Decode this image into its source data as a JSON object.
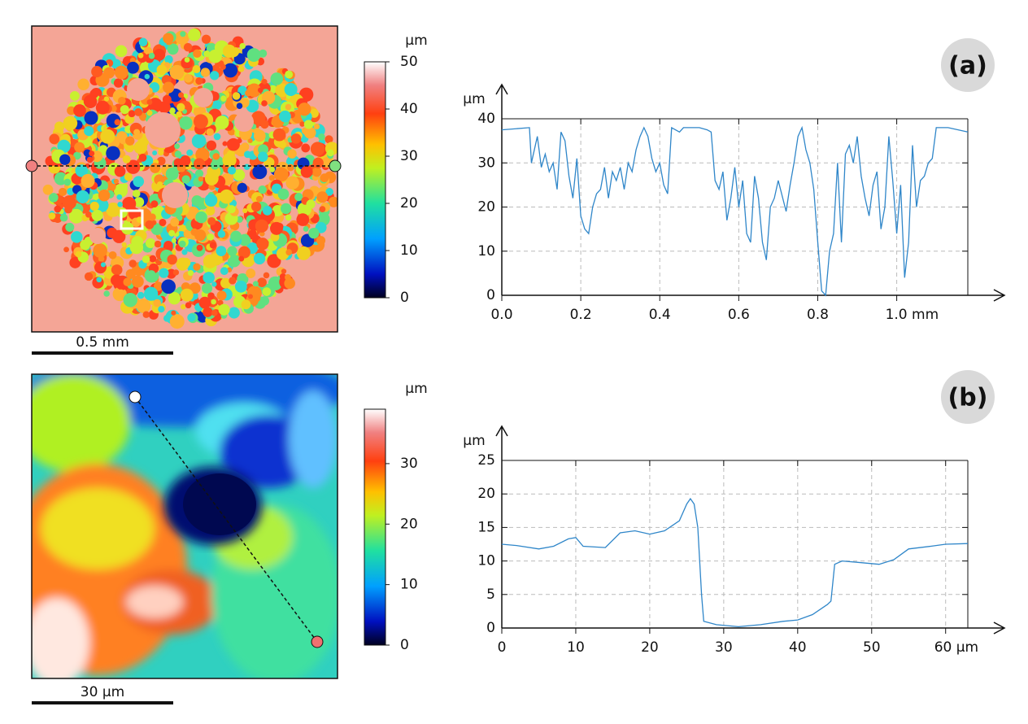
{
  "chart_data": [
    {
      "type": "line",
      "panel_label": "(a)",
      "y_unit": "µm",
      "color": "#2f86c9",
      "grid": true,
      "x": [
        0,
        0.07,
        0.075,
        0.09,
        0.1,
        0.11,
        0.12,
        0.13,
        0.14,
        0.15,
        0.16,
        0.17,
        0.18,
        0.19,
        0.2,
        0.21,
        0.22,
        0.23,
        0.24,
        0.25,
        0.26,
        0.27,
        0.28,
        0.29,
        0.3,
        0.31,
        0.32,
        0.33,
        0.34,
        0.35,
        0.36,
        0.37,
        0.38,
        0.39,
        0.4,
        0.41,
        0.42,
        0.43,
        0.45,
        0.46,
        0.5,
        0.52,
        0.53,
        0.54,
        0.55,
        0.56,
        0.57,
        0.58,
        0.59,
        0.6,
        0.61,
        0.62,
        0.63,
        0.64,
        0.65,
        0.66,
        0.67,
        0.68,
        0.69,
        0.7,
        0.72,
        0.73,
        0.74,
        0.75,
        0.76,
        0.77,
        0.78,
        0.79,
        0.8,
        0.81,
        0.82,
        0.83,
        0.84,
        0.85,
        0.86,
        0.87,
        0.88,
        0.89,
        0.9,
        0.91,
        0.92,
        0.93,
        0.94,
        0.95,
        0.96,
        0.97,
        0.98,
        0.99,
        1.0,
        1.01,
        1.02,
        1.03,
        1.04,
        1.05,
        1.06,
        1.07,
        1.08,
        1.09,
        1.1,
        1.13,
        1.18
      ],
      "values": [
        37.5,
        38,
        30,
        36,
        29,
        32,
        28,
        30,
        24,
        37,
        35,
        27,
        22,
        31,
        18,
        15,
        14,
        20,
        23,
        24,
        29,
        22,
        28,
        26,
        29,
        24,
        30,
        28,
        33,
        36,
        38,
        36,
        31,
        28,
        30,
        25,
        23,
        38,
        37,
        38,
        38,
        37.5,
        37,
        26,
        24,
        28,
        17,
        22,
        29,
        20,
        26,
        14,
        12,
        27,
        22,
        12,
        8,
        20,
        22,
        26,
        19,
        25,
        30,
        36,
        38,
        33,
        30,
        24,
        12,
        1,
        0,
        10,
        14,
        30,
        12,
        32,
        34,
        30,
        36,
        27,
        22,
        18,
        25,
        28,
        15,
        20,
        36,
        26,
        14,
        25,
        4,
        12,
        34,
        20,
        26,
        27,
        30,
        31,
        38,
        38,
        37
      ],
      "xlim": [
        0,
        1.18
      ],
      "xticks": [
        {
          "value": 0,
          "label": "0.0"
        },
        0.2,
        0.4,
        0.6,
        0.8,
        {
          "value": 1,
          "label": "1.0 mm"
        }
      ],
      "ylim": [
        0,
        40
      ],
      "yticks": [
        0,
        10,
        20,
        30,
        40
      ]
    },
    {
      "type": "line",
      "panel_label": "(b)",
      "y_unit": "µm",
      "color": "#2f86c9",
      "grid": true,
      "x": [
        0,
        2,
        5,
        7,
        9,
        10,
        11,
        14,
        16,
        18,
        20,
        22,
        24,
        25,
        25.5,
        26,
        26.5,
        27,
        27.3,
        29,
        32,
        35,
        38,
        40,
        42,
        44,
        44.5,
        45,
        46,
        48,
        51,
        53,
        55,
        58,
        60,
        63
      ],
      "values": [
        12.5,
        12.3,
        11.8,
        12.2,
        13.3,
        13.5,
        12.2,
        12,
        14.2,
        14.5,
        14,
        14.5,
        16,
        18.5,
        19.3,
        18.5,
        15,
        5,
        1,
        0.5,
        0.2,
        0.5,
        1,
        1.2,
        2,
        3.5,
        4,
        9.5,
        10,
        9.8,
        9.5,
        10.2,
        11.8,
        12.2,
        12.5,
        12.6
      ],
      "xlim": [
        0,
        63
      ],
      "xticks": [
        0,
        10,
        20,
        30,
        40,
        50,
        {
          "value": 60,
          "label": "60 µm"
        }
      ],
      "ylim": [
        0,
        25
      ],
      "yticks": [
        0,
        5,
        10,
        15,
        20,
        25
      ]
    }
  ],
  "maps": [
    {
      "scale_bar": "0.5 mm",
      "colorbar": {
        "unit": "µm",
        "lim": [
          0,
          50
        ],
        "ticks": [
          0,
          10,
          20,
          30,
          40,
          50
        ]
      }
    },
    {
      "scale_bar": "30 µm",
      "colorbar": {
        "unit": "µm",
        "lim": [
          0,
          39
        ],
        "ticks": [
          0,
          10,
          20,
          30
        ]
      }
    }
  ]
}
